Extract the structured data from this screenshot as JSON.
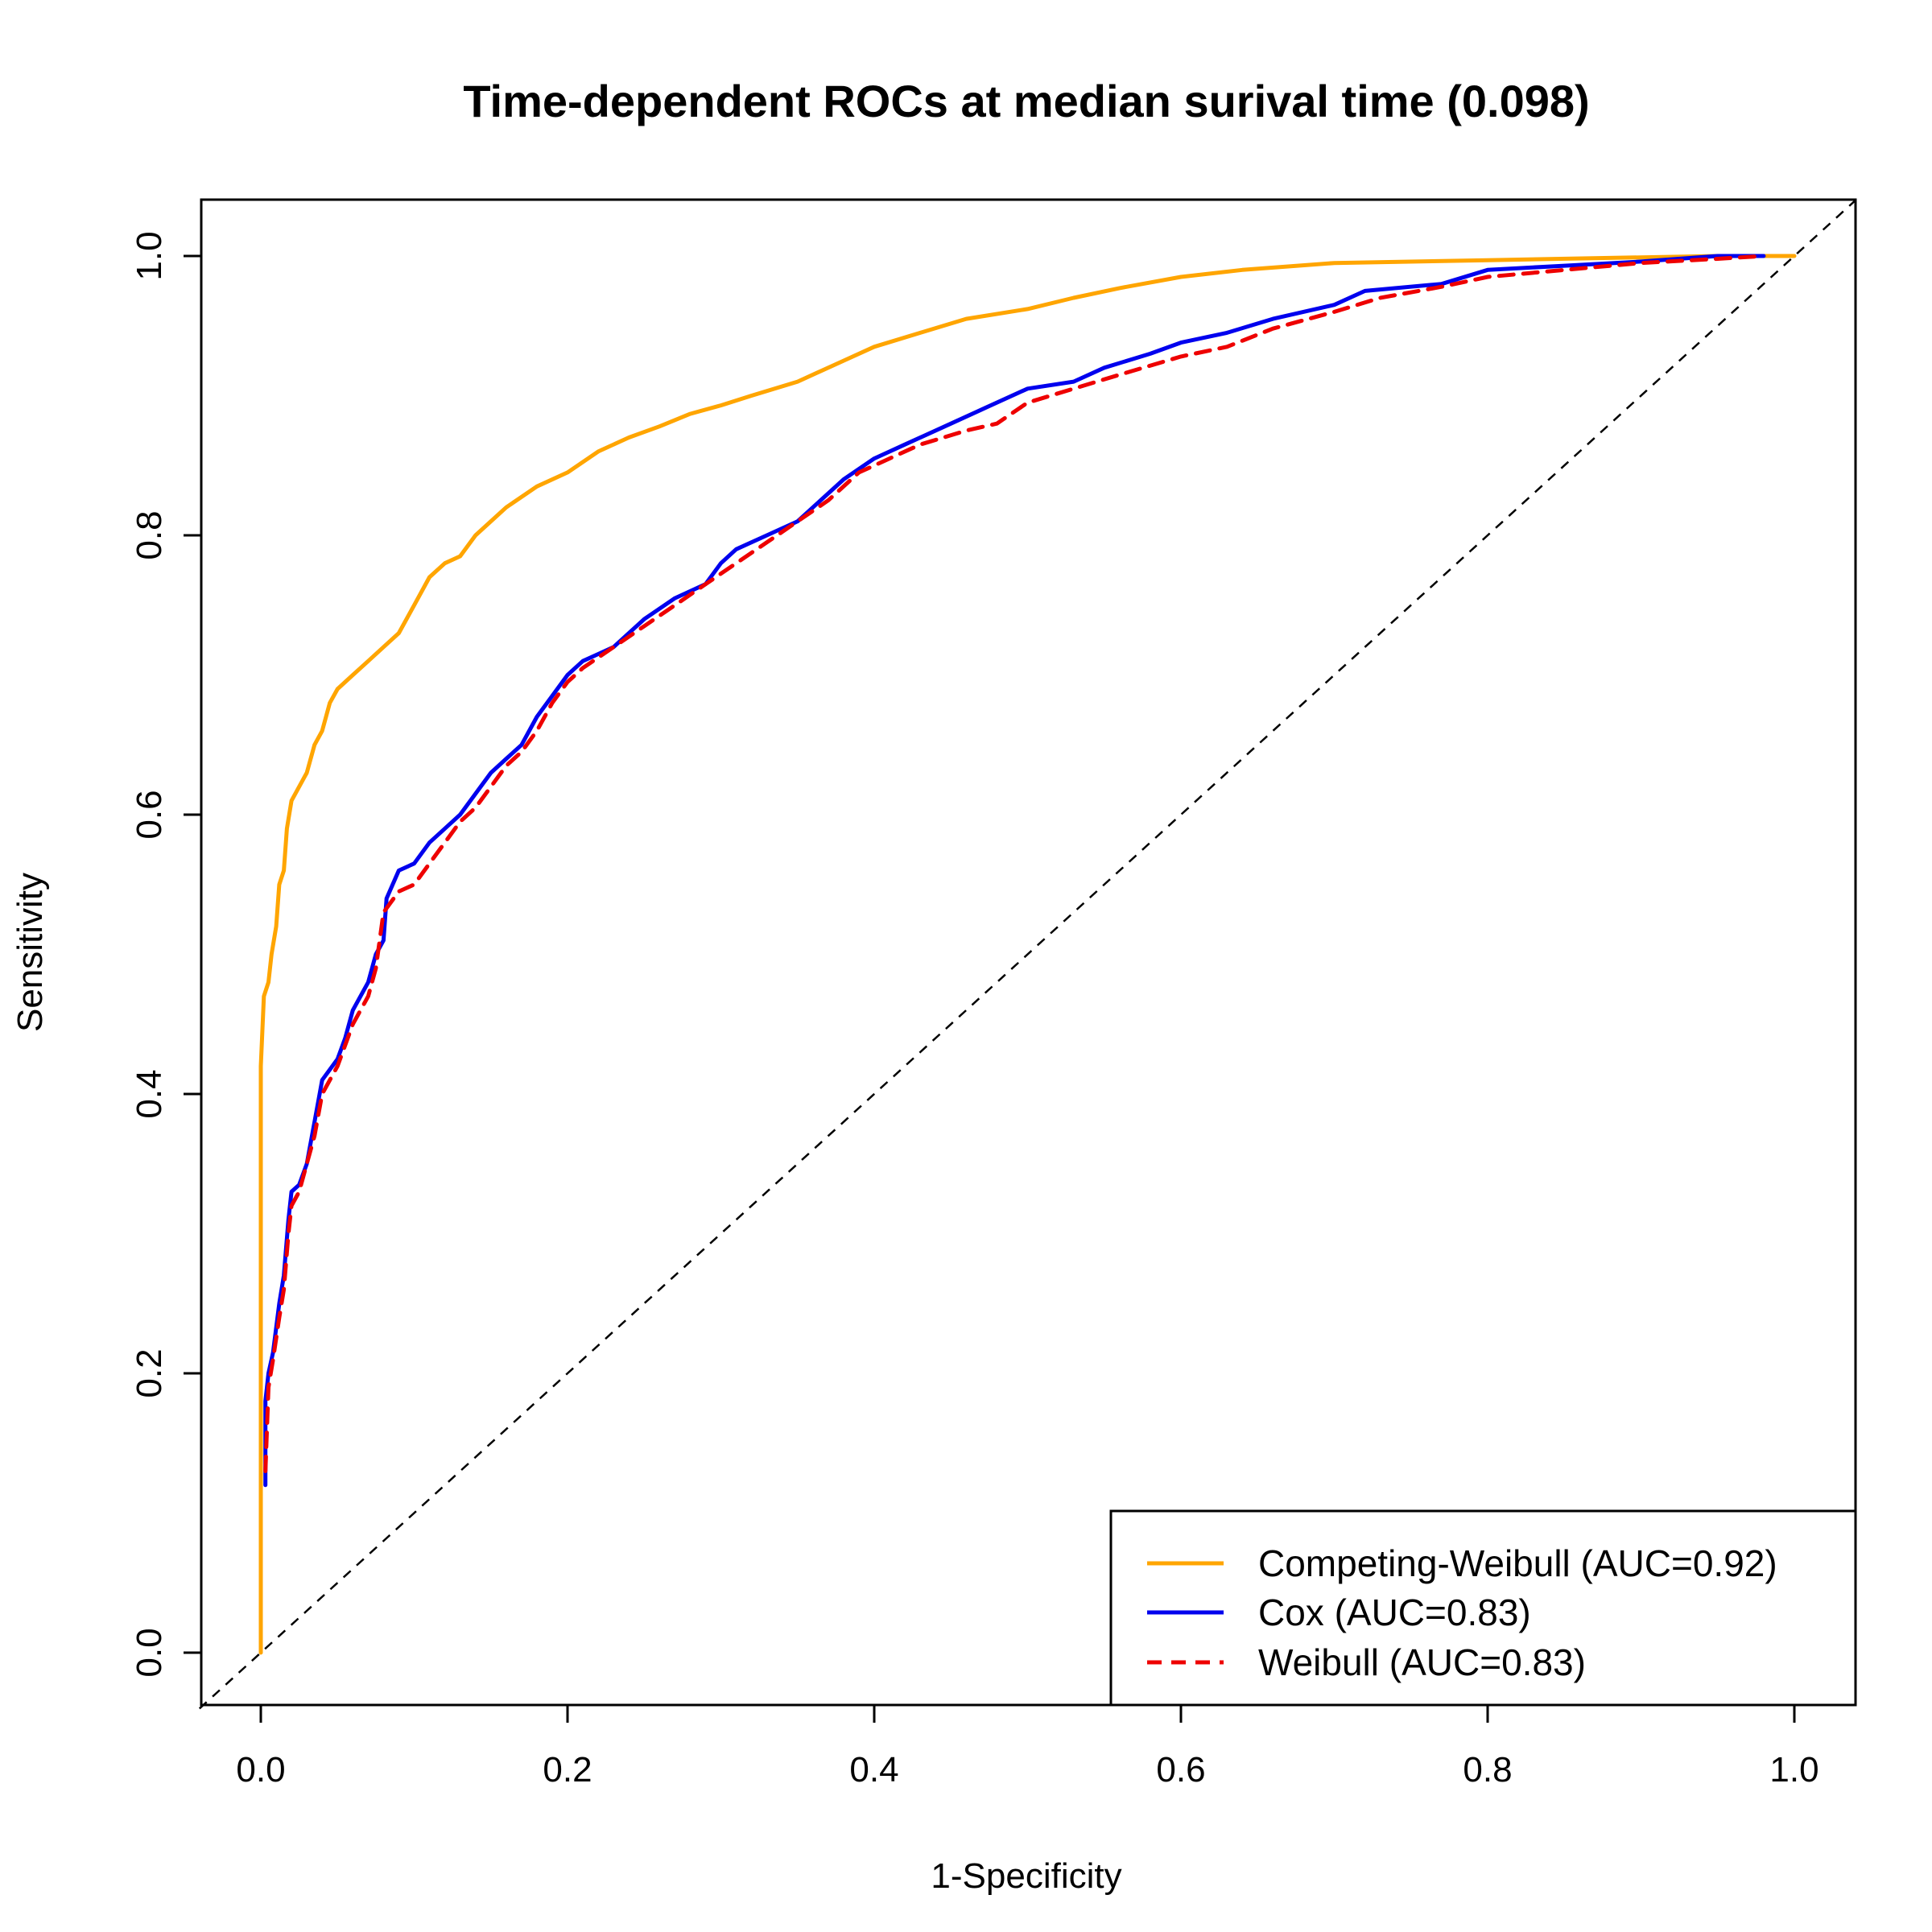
{
  "chart_data": {
    "type": "line",
    "title": "Time-dependent ROCs at median surival time (0.098)",
    "xlabel": "1-Specificity",
    "ylabel": "Sensitivity",
    "xlim": [
      0,
      1
    ],
    "ylim": [
      0,
      1
    ],
    "xticks": [
      "0.0",
      "0.2",
      "0.4",
      "0.6",
      "0.8",
      "1.0"
    ],
    "yticks": [
      "0.0",
      "0.2",
      "0.4",
      "0.6",
      "0.8",
      "1.0"
    ],
    "grid": false,
    "legend_position": "bottom-right",
    "reference_line": {
      "style": "dashed",
      "color": "#000000",
      "from": [
        0,
        0
      ],
      "to": [
        1,
        1
      ]
    },
    "series": [
      {
        "name": "Competing-Weibull (AUC=0.92)",
        "color": "#FFA500",
        "style": "solid",
        "points": [
          [
            0,
            0
          ],
          [
            0,
            0.42
          ],
          [
            0.002,
            0.47
          ],
          [
            0.005,
            0.48
          ],
          [
            0.007,
            0.5
          ],
          [
            0.01,
            0.52
          ],
          [
            0.012,
            0.55
          ],
          [
            0.015,
            0.56
          ],
          [
            0.017,
            0.59
          ],
          [
            0.02,
            0.61
          ],
          [
            0.025,
            0.62
          ],
          [
            0.03,
            0.63
          ],
          [
            0.035,
            0.65
          ],
          [
            0.04,
            0.66
          ],
          [
            0.045,
            0.68
          ],
          [
            0.05,
            0.69
          ],
          [
            0.06,
            0.7
          ],
          [
            0.07,
            0.71
          ],
          [
            0.08,
            0.72
          ],
          [
            0.09,
            0.73
          ],
          [
            0.1,
            0.75
          ],
          [
            0.11,
            0.77
          ],
          [
            0.12,
            0.78
          ],
          [
            0.13,
            0.785
          ],
          [
            0.14,
            0.8
          ],
          [
            0.15,
            0.81
          ],
          [
            0.16,
            0.82
          ],
          [
            0.18,
            0.835
          ],
          [
            0.2,
            0.845
          ],
          [
            0.22,
            0.86
          ],
          [
            0.24,
            0.87
          ],
          [
            0.26,
            0.878
          ],
          [
            0.28,
            0.887
          ],
          [
            0.3,
            0.893
          ],
          [
            0.32,
            0.9
          ],
          [
            0.35,
            0.91
          ],
          [
            0.38,
            0.925
          ],
          [
            0.4,
            0.935
          ],
          [
            0.43,
            0.945
          ],
          [
            0.46,
            0.955
          ],
          [
            0.5,
            0.962
          ],
          [
            0.53,
            0.97
          ],
          [
            0.56,
            0.977
          ],
          [
            0.6,
            0.985
          ],
          [
            0.64,
            0.99
          ],
          [
            0.7,
            0.995
          ],
          [
            0.8,
            0.997
          ],
          [
            0.9,
            0.999
          ],
          [
            0.95,
            1
          ],
          [
            1,
            1
          ]
        ]
      },
      {
        "name": "Cox (AUC=0.83)",
        "color": "#0000EE",
        "style": "solid",
        "points": [
          [
            0.003,
            0.12
          ],
          [
            0.003,
            0.18
          ],
          [
            0.005,
            0.2
          ],
          [
            0.008,
            0.215
          ],
          [
            0.012,
            0.25
          ],
          [
            0.015,
            0.27
          ],
          [
            0.018,
            0.31
          ],
          [
            0.02,
            0.33
          ],
          [
            0.025,
            0.335
          ],
          [
            0.03,
            0.35
          ],
          [
            0.035,
            0.38
          ],
          [
            0.04,
            0.41
          ],
          [
            0.05,
            0.425
          ],
          [
            0.055,
            0.44
          ],
          [
            0.06,
            0.46
          ],
          [
            0.07,
            0.48
          ],
          [
            0.075,
            0.5
          ],
          [
            0.08,
            0.51
          ],
          [
            0.082,
            0.54
          ],
          [
            0.09,
            0.56
          ],
          [
            0.1,
            0.565
          ],
          [
            0.11,
            0.58
          ],
          [
            0.12,
            0.59
          ],
          [
            0.13,
            0.6
          ],
          [
            0.14,
            0.615
          ],
          [
            0.15,
            0.63
          ],
          [
            0.16,
            0.64
          ],
          [
            0.17,
            0.65
          ],
          [
            0.18,
            0.67
          ],
          [
            0.19,
            0.685
          ],
          [
            0.2,
            0.7
          ],
          [
            0.21,
            0.71
          ],
          [
            0.22,
            0.715
          ],
          [
            0.23,
            0.72
          ],
          [
            0.25,
            0.74
          ],
          [
            0.27,
            0.755
          ],
          [
            0.29,
            0.765
          ],
          [
            0.3,
            0.78
          ],
          [
            0.31,
            0.79
          ],
          [
            0.33,
            0.8
          ],
          [
            0.35,
            0.81
          ],
          [
            0.37,
            0.83
          ],
          [
            0.38,
            0.84
          ],
          [
            0.4,
            0.855
          ],
          [
            0.42,
            0.865
          ],
          [
            0.45,
            0.88
          ],
          [
            0.47,
            0.89
          ],
          [
            0.5,
            0.905
          ],
          [
            0.53,
            0.91
          ],
          [
            0.55,
            0.92
          ],
          [
            0.58,
            0.93
          ],
          [
            0.6,
            0.938
          ],
          [
            0.63,
            0.945
          ],
          [
            0.66,
            0.955
          ],
          [
            0.7,
            0.965
          ],
          [
            0.72,
            0.975
          ],
          [
            0.77,
            0.98
          ],
          [
            0.8,
            0.99
          ],
          [
            0.85,
            0.993
          ],
          [
            0.9,
            0.996
          ],
          [
            0.95,
            1
          ],
          [
            0.98,
            1
          ]
        ]
      },
      {
        "name": "Weibull (AUC=0.83)",
        "color": "#EE0000",
        "style": "dashed",
        "points": [
          [
            0.003,
            0.13
          ],
          [
            0.005,
            0.19
          ],
          [
            0.008,
            0.21
          ],
          [
            0.012,
            0.24
          ],
          [
            0.015,
            0.26
          ],
          [
            0.018,
            0.3
          ],
          [
            0.02,
            0.32
          ],
          [
            0.025,
            0.33
          ],
          [
            0.03,
            0.35
          ],
          [
            0.035,
            0.37
          ],
          [
            0.04,
            0.4
          ],
          [
            0.05,
            0.42
          ],
          [
            0.06,
            0.45
          ],
          [
            0.07,
            0.47
          ],
          [
            0.075,
            0.49
          ],
          [
            0.08,
            0.53
          ],
          [
            0.09,
            0.545
          ],
          [
            0.1,
            0.55
          ],
          [
            0.11,
            0.565
          ],
          [
            0.12,
            0.58
          ],
          [
            0.13,
            0.595
          ],
          [
            0.14,
            0.605
          ],
          [
            0.15,
            0.62
          ],
          [
            0.16,
            0.635
          ],
          [
            0.17,
            0.645
          ],
          [
            0.18,
            0.66
          ],
          [
            0.19,
            0.68
          ],
          [
            0.2,
            0.695
          ],
          [
            0.21,
            0.705
          ],
          [
            0.23,
            0.72
          ],
          [
            0.25,
            0.735
          ],
          [
            0.27,
            0.75
          ],
          [
            0.29,
            0.765
          ],
          [
            0.31,
            0.78
          ],
          [
            0.33,
            0.795
          ],
          [
            0.35,
            0.81
          ],
          [
            0.37,
            0.825
          ],
          [
            0.39,
            0.845
          ],
          [
            0.41,
            0.855
          ],
          [
            0.43,
            0.865
          ],
          [
            0.46,
            0.875
          ],
          [
            0.48,
            0.88
          ],
          [
            0.5,
            0.895
          ],
          [
            0.53,
            0.905
          ],
          [
            0.56,
            0.915
          ],
          [
            0.6,
            0.928
          ],
          [
            0.63,
            0.935
          ],
          [
            0.66,
            0.948
          ],
          [
            0.7,
            0.96
          ],
          [
            0.73,
            0.97
          ],
          [
            0.77,
            0.978
          ],
          [
            0.8,
            0.985
          ],
          [
            0.85,
            0.99
          ],
          [
            0.9,
            0.995
          ],
          [
            0.95,
            0.998
          ],
          [
            0.98,
            1
          ]
        ]
      }
    ]
  }
}
